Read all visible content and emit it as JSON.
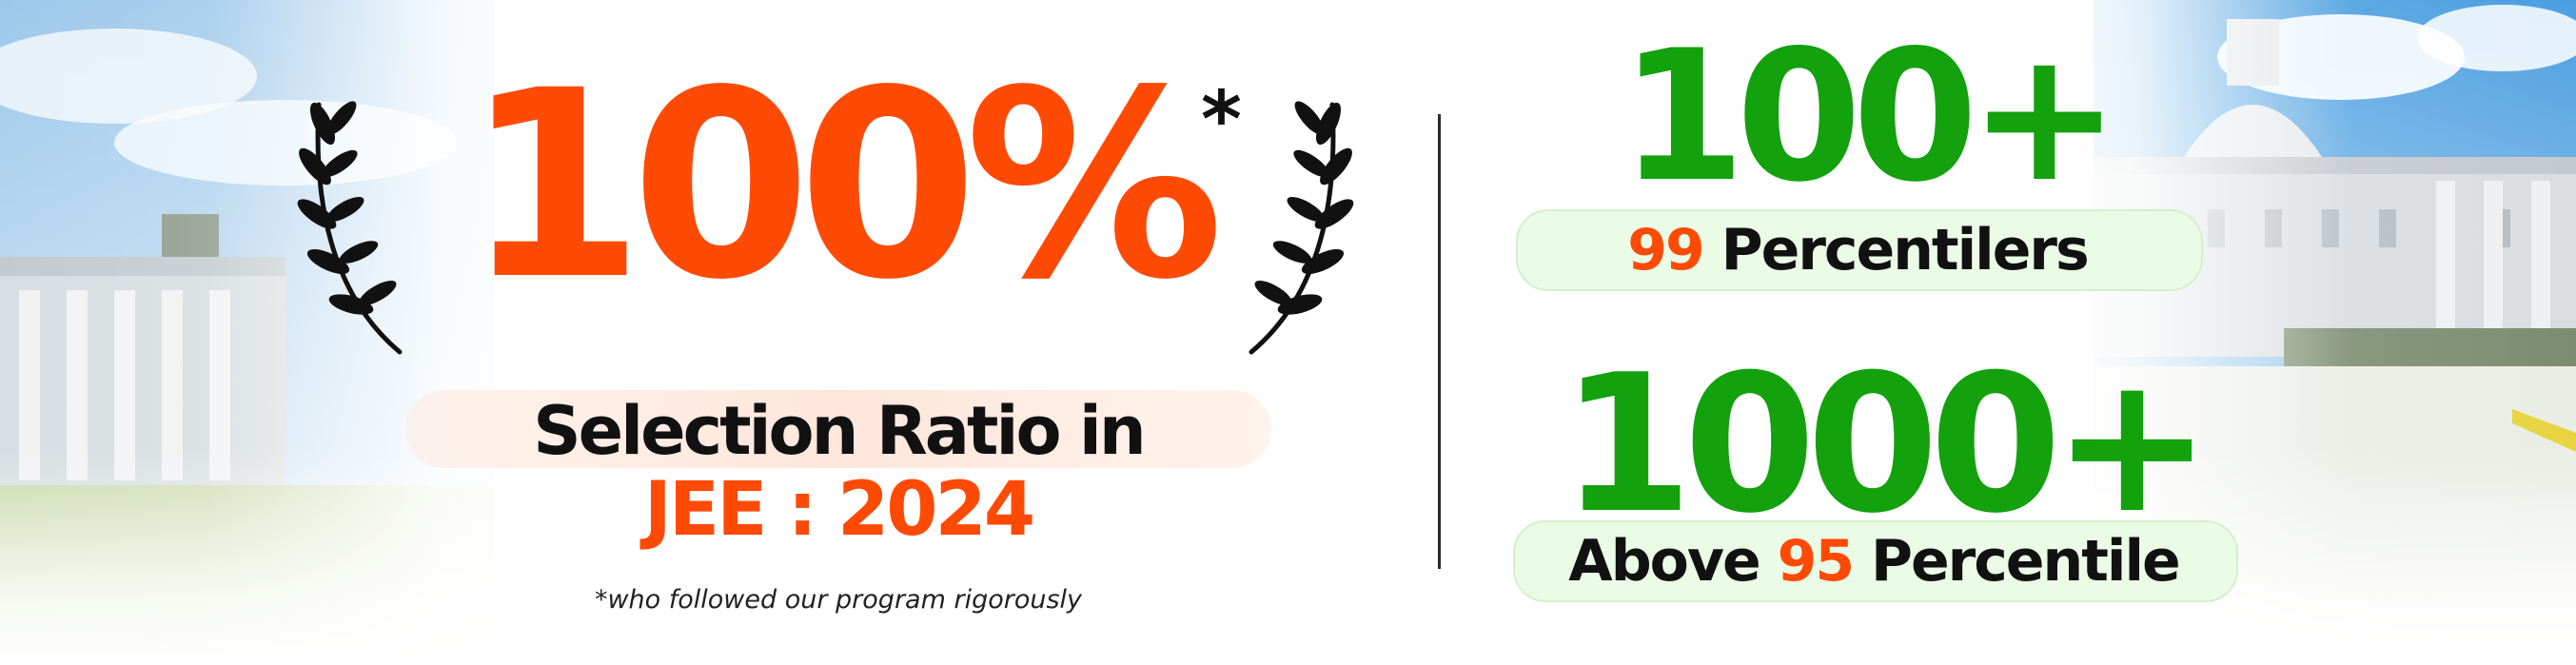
{
  "headline": {
    "percent": "100%",
    "asterisk": "*",
    "line1": "Selection Ratio in",
    "line2": "JEE : 2024",
    "footnote": "*who followed our program rigorously"
  },
  "stats": [
    {
      "number": "100+",
      "highlight": "99",
      "label": "Percentilers"
    },
    {
      "number": "1000+",
      "prefix": "Above",
      "highlight": "95",
      "label": "Percentile"
    }
  ],
  "colors": {
    "accent_orange": "#ff4a05",
    "accent_green": "#13a10e",
    "text_dark": "#111111",
    "sky_blue": "#8fc3e8"
  },
  "icons": [
    "laurel-wreath-left-icon",
    "laurel-wreath-right-icon"
  ]
}
